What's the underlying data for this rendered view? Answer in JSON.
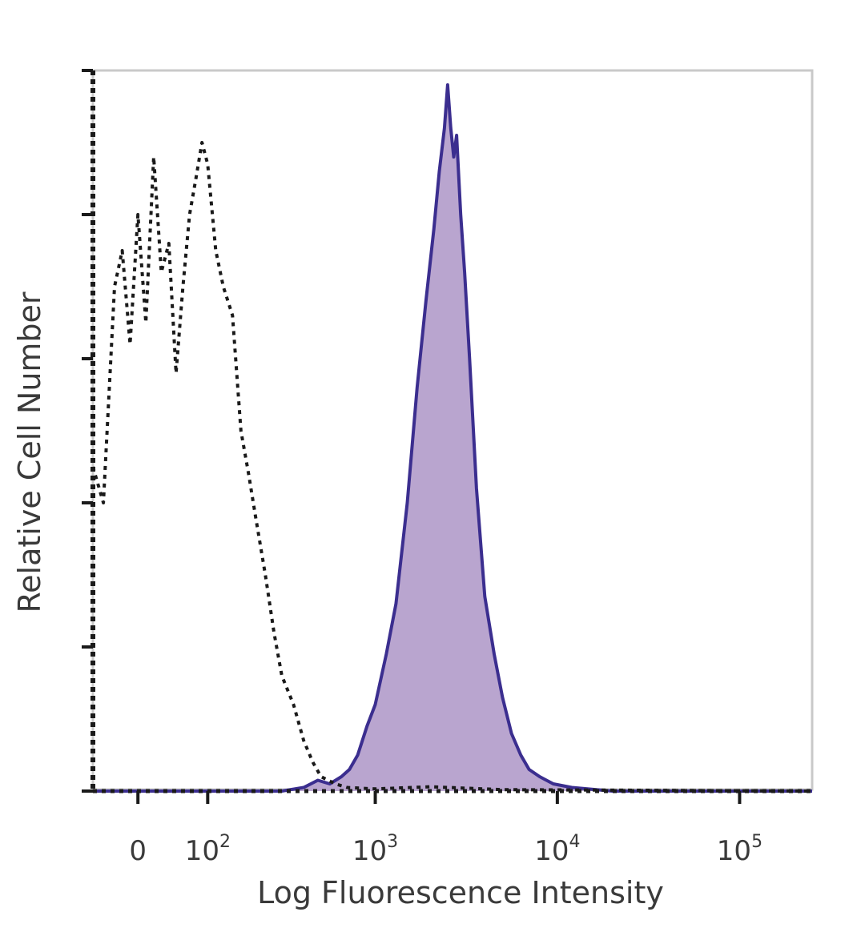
{
  "chart_data": {
    "type": "area",
    "xlabel": "Log Fluorescence Intensity",
    "ylabel": "Relative Cell Number",
    "x_scale": "biexponential",
    "xlim": [
      -60,
      250000
    ],
    "ylim": [
      0,
      100
    ],
    "x_ticks": [
      {
        "value": 0,
        "base": "0",
        "exp": ""
      },
      {
        "value": 100,
        "base": "10",
        "exp": "2"
      },
      {
        "value": 1000,
        "base": "10",
        "exp": "3"
      },
      {
        "value": 10000,
        "base": "10",
        "exp": "4"
      },
      {
        "value": 100000,
        "base": "10",
        "exp": "5"
      }
    ],
    "y_minor_ticks": [
      0,
      20,
      40,
      60,
      80,
      100
    ],
    "grid": false,
    "legend": "none",
    "series": [
      {
        "style": "filled",
        "color": "#3b2e8f",
        "fill": "#b9a5cf",
        "x": [
          -60,
          300,
          400,
          480,
          560,
          650,
          720,
          800,
          900,
          1000,
          1150,
          1300,
          1500,
          1700,
          1900,
          2100,
          2250,
          2400,
          2500,
          2600,
          2700,
          2800,
          2950,
          3100,
          3300,
          3600,
          4000,
          4500,
          5000,
          5600,
          6300,
          7000,
          8000,
          9500,
          12000,
          20000,
          250000
        ],
        "y": [
          0,
          0,
          0.5,
          1.5,
          1,
          2,
          3,
          5,
          9,
          12,
          19,
          26,
          40,
          56,
          68,
          78,
          86,
          92,
          98,
          92,
          88,
          91,
          80,
          72,
          60,
          42,
          27,
          19,
          13,
          8,
          5,
          3,
          2,
          1,
          0.5,
          0,
          0
        ]
      },
      {
        "style": "dotted",
        "color": "#1a1a1a",
        "x": [
          -60,
          -45,
          -30,
          -20,
          -10,
          0,
          10,
          20,
          30,
          40,
          50,
          60,
          70,
          80,
          90,
          100,
          115,
          130,
          150,
          170,
          190,
          210,
          240,
          270,
          300,
          350,
          400,
          450,
          500,
          600,
          700,
          1000,
          2000,
          5000,
          250000
        ],
        "y": [
          45,
          40,
          70,
          75,
          62,
          80,
          65,
          88,
          72,
          76,
          58,
          70,
          80,
          85,
          90,
          87,
          75,
          70,
          66,
          50,
          44,
          38,
          30,
          22,
          16,
          12,
          7,
          4,
          2,
          1,
          0.5,
          0.3,
          0.6,
          0.2,
          0
        ]
      }
    ]
  }
}
